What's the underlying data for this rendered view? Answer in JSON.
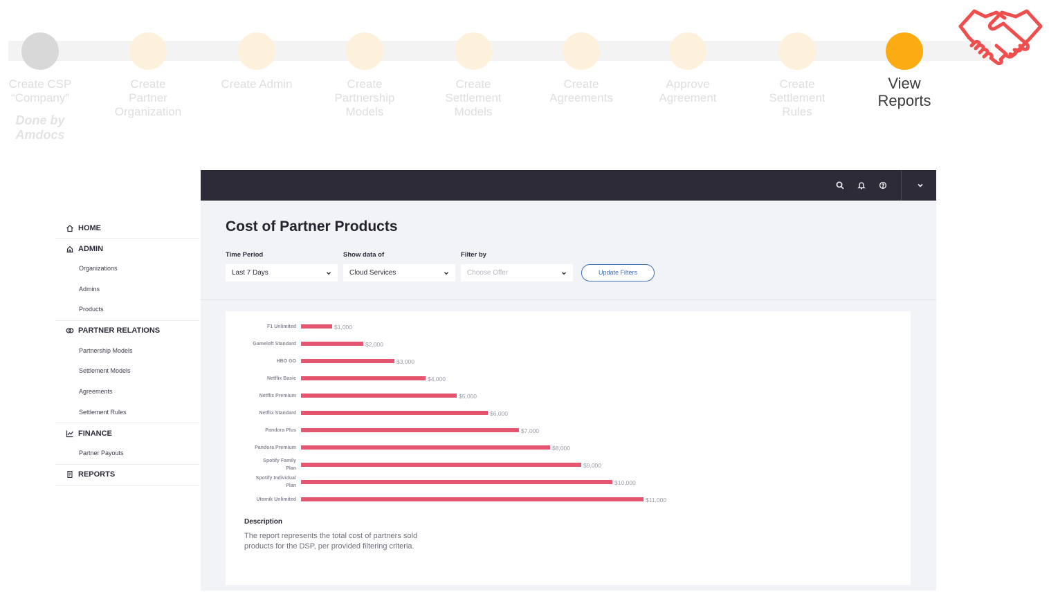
{
  "steps": [
    {
      "label": "Create CSP “Company”",
      "state": "done",
      "note": "Done by Amdocs"
    },
    {
      "label": "Create Partner Organization",
      "state": "pending"
    },
    {
      "label": "Create Admin",
      "state": "pending"
    },
    {
      "label": "Create Partnership Models",
      "state": "pending"
    },
    {
      "label": "Create Settlement Models",
      "state": "pending"
    },
    {
      "label": "Create Agreements",
      "state": "pending"
    },
    {
      "label": "Approve Agreement",
      "state": "pending"
    },
    {
      "label": "Create Settlement Rules",
      "state": "pending"
    },
    {
      "label": "View Reports",
      "state": "current"
    }
  ],
  "topbar": {
    "icons": [
      "search-icon",
      "bell-icon",
      "help-icon",
      "chevron-down-icon"
    ]
  },
  "sidebar": {
    "sections": [
      {
        "label": "HOME",
        "icon": "home-icon",
        "items": []
      },
      {
        "label": "ADMIN",
        "icon": "admin-icon",
        "items": [
          "Organizations",
          "Admins",
          "Products"
        ]
      },
      {
        "label": "PARTNER RELATIONS",
        "icon": "partner-icon",
        "items": [
          "Partnership Models",
          "Settlement Models",
          "Agreements",
          "Settlement Rules"
        ]
      },
      {
        "label": "FINANCE",
        "icon": "chart-line-icon",
        "items": [
          "Partner Payouts"
        ]
      },
      {
        "label": "REPORTS",
        "icon": "report-icon",
        "items": []
      }
    ]
  },
  "page": {
    "title": "Cost of Partner Products",
    "filters": {
      "time_period_label": "Time Period",
      "time_period_value": "Last 7 Days",
      "show_data_label": "Show data of",
      "show_data_value": "Cloud Services",
      "filter_by_label": "Filter by",
      "filter_by_placeholder": "Choose Offer",
      "update_button": "Update Filters"
    },
    "description_title": "Description",
    "description_text": "The report represents the total cost of partners sold products for the DSP, per provided filtering criteria."
  },
  "colors": {
    "accent": "#fcab12",
    "bar": "#e55570",
    "topbar": "#2c2b37",
    "handshake": "#ee4e4e"
  },
  "chart_data": {
    "type": "bar",
    "orientation": "horizontal",
    "categories": [
      "F1 Unlimited",
      "Gameloft Standard",
      "HBO GO",
      "Netflix Basic",
      "Netflix Premium",
      "Netflix Standard",
      "Pandora Plus",
      "Pandora Premium",
      "Spotify Family Plan",
      "Spotify Individual Plan",
      "Utomik Unlimited"
    ],
    "category_lines": [
      [
        "F1 Unlimited"
      ],
      [
        "Gameloft Standard"
      ],
      [
        "HBO GO"
      ],
      [
        "Netflix Basic"
      ],
      [
        "Netflix Premium"
      ],
      [
        "Netflix Standard"
      ],
      [
        "Pandora Plus"
      ],
      [
        "Pandora Premium"
      ],
      [
        "Spotify Family",
        "Plan"
      ],
      [
        "Spotify Individual",
        "Plan"
      ],
      [
        "Utomik Unlimited"
      ]
    ],
    "values": [
      1000,
      2000,
      3000,
      4000,
      5000,
      6000,
      7000,
      8000,
      9000,
      10000,
      11000
    ],
    "value_labels": [
      "$1,000",
      "$2,000",
      "$3,000",
      "$4,000",
      "$5,000",
      "$6,000",
      "$7,000",
      "$8,000",
      "$9,000",
      "$10,000",
      "$11,000"
    ],
    "title": "",
    "xlabel": "",
    "ylabel": "",
    "xlim": [
      0,
      11000
    ],
    "grid": false,
    "legend": "none"
  }
}
